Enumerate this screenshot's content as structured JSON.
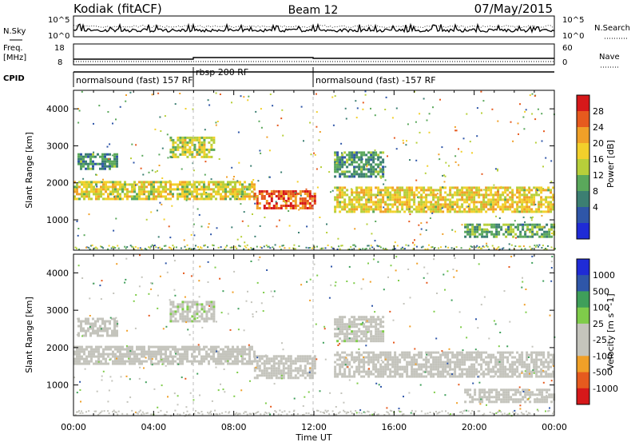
{
  "header": {
    "station": "Kodiak (fitACF)",
    "beam": "Beam 12",
    "date": "07/May/2015"
  },
  "top_panels": {
    "nsky_label": "N.Sky",
    "nsky_ticks": [
      "10^5",
      "10^0"
    ],
    "nsearch_label": "N.Search",
    "nsearch_ticks": [
      "10^5",
      "10^0"
    ],
    "freq_label_line1": "Freq.",
    "freq_label_line2": "[MHz]",
    "freq_ticks": [
      "18",
      "8"
    ],
    "nave_label": "Nave",
    "nave_ticks": [
      "60",
      "0"
    ],
    "cpid_label": "CPID",
    "cpid_segments": [
      {
        "label": "normalsound (fast) 157 RF",
        "start": 0,
        "end": 6
      },
      {
        "label": "rbsp 200 RF",
        "start": 6,
        "end": 12
      },
      {
        "label": "normalsound (fast) -157 RF",
        "start": 12,
        "end": 24
      }
    ]
  },
  "axes": {
    "ylabel": "Slant Range [km]",
    "y_ticks": [
      1000,
      2000,
      3000,
      4000
    ],
    "y_range_km": [
      180,
      4500
    ],
    "x_ticks": [
      "00:00",
      "04:00",
      "08:00",
      "12:00",
      "16:00",
      "20:00",
      "00:00"
    ],
    "x_range_hours": [
      0,
      24
    ],
    "xlabel": "Time UT"
  },
  "chart_data": [
    {
      "type": "heatmap",
      "title": "",
      "quantity": "Power",
      "colorbar_label": "Power [dB]",
      "colorbar_ticks": [
        "28",
        "24",
        "20",
        "16",
        "12",
        "8",
        "4"
      ],
      "colorbar_range": [
        0,
        32
      ],
      "x_range_hours": [
        0,
        24
      ],
      "y_range_km": [
        180,
        4500
      ],
      "palette": [
        "#1f2bd6",
        "#2f56a8",
        "#3c7f72",
        "#5aa85b",
        "#b7cf3a",
        "#f2d02b",
        "#f0a028",
        "#e65a1e",
        "#d6181a"
      ],
      "bands": [
        {
          "t0": 0.0,
          "t1": 9.0,
          "r0": 1550,
          "r1": 2050,
          "level": 18
        },
        {
          "t0": 9.0,
          "t1": 12.0,
          "r0": 1300,
          "r1": 1800,
          "level": 27
        },
        {
          "t0": 13.0,
          "t1": 24.0,
          "r0": 1250,
          "r1": 1900,
          "level": 19
        },
        {
          "t0": 0.2,
          "t1": 2.2,
          "r0": 2350,
          "r1": 2800,
          "level": 10
        },
        {
          "t0": 4.8,
          "t1": 7.0,
          "r0": 2700,
          "r1": 3250,
          "level": 17
        },
        {
          "t0": 13.0,
          "t1": 15.5,
          "r0": 2200,
          "r1": 2850,
          "level": 11
        },
        {
          "t0": 19.5,
          "t1": 24.0,
          "r0": 550,
          "r1": 900,
          "level": 12
        }
      ]
    },
    {
      "type": "heatmap",
      "title": "",
      "quantity": "Velocity",
      "colorbar_label": "Velocity [m s^-1]",
      "colorbar_ticks": [
        "1000",
        "500",
        "100",
        "25",
        "-25",
        "-100",
        "-500",
        "-1000"
      ],
      "colorbar_range": [
        -1200,
        1200
      ],
      "x_range_hours": [
        0,
        24
      ],
      "y_range_km": [
        180,
        4500
      ],
      "palette": [
        "#d6181a",
        "#e65a1e",
        "#f0a028",
        "#c4c4bc",
        "#c4c4bc",
        "#7fcc4a",
        "#3f9f5a",
        "#2f56a8",
        "#1f2bd6"
      ],
      "bands": [
        {
          "t0": 0.0,
          "t1": 9.0,
          "r0": 1550,
          "r1": 2050,
          "level": 0
        },
        {
          "t0": 9.0,
          "t1": 12.0,
          "r0": 1200,
          "r1": 1800,
          "level": -250
        },
        {
          "t0": 13.0,
          "t1": 24.0,
          "r0": 1250,
          "r1": 1900,
          "level": 0
        },
        {
          "t0": 0.2,
          "t1": 2.2,
          "r0": 2350,
          "r1": 2800,
          "level": 0
        },
        {
          "t0": 4.8,
          "t1": 7.0,
          "r0": 2700,
          "r1": 3250,
          "level": 80
        },
        {
          "t0": 13.0,
          "t1": 15.5,
          "r0": 2200,
          "r1": 2850,
          "level": 60
        },
        {
          "t0": 19.5,
          "t1": 24.0,
          "r0": 550,
          "r1": 900,
          "level": 0
        }
      ]
    }
  ]
}
